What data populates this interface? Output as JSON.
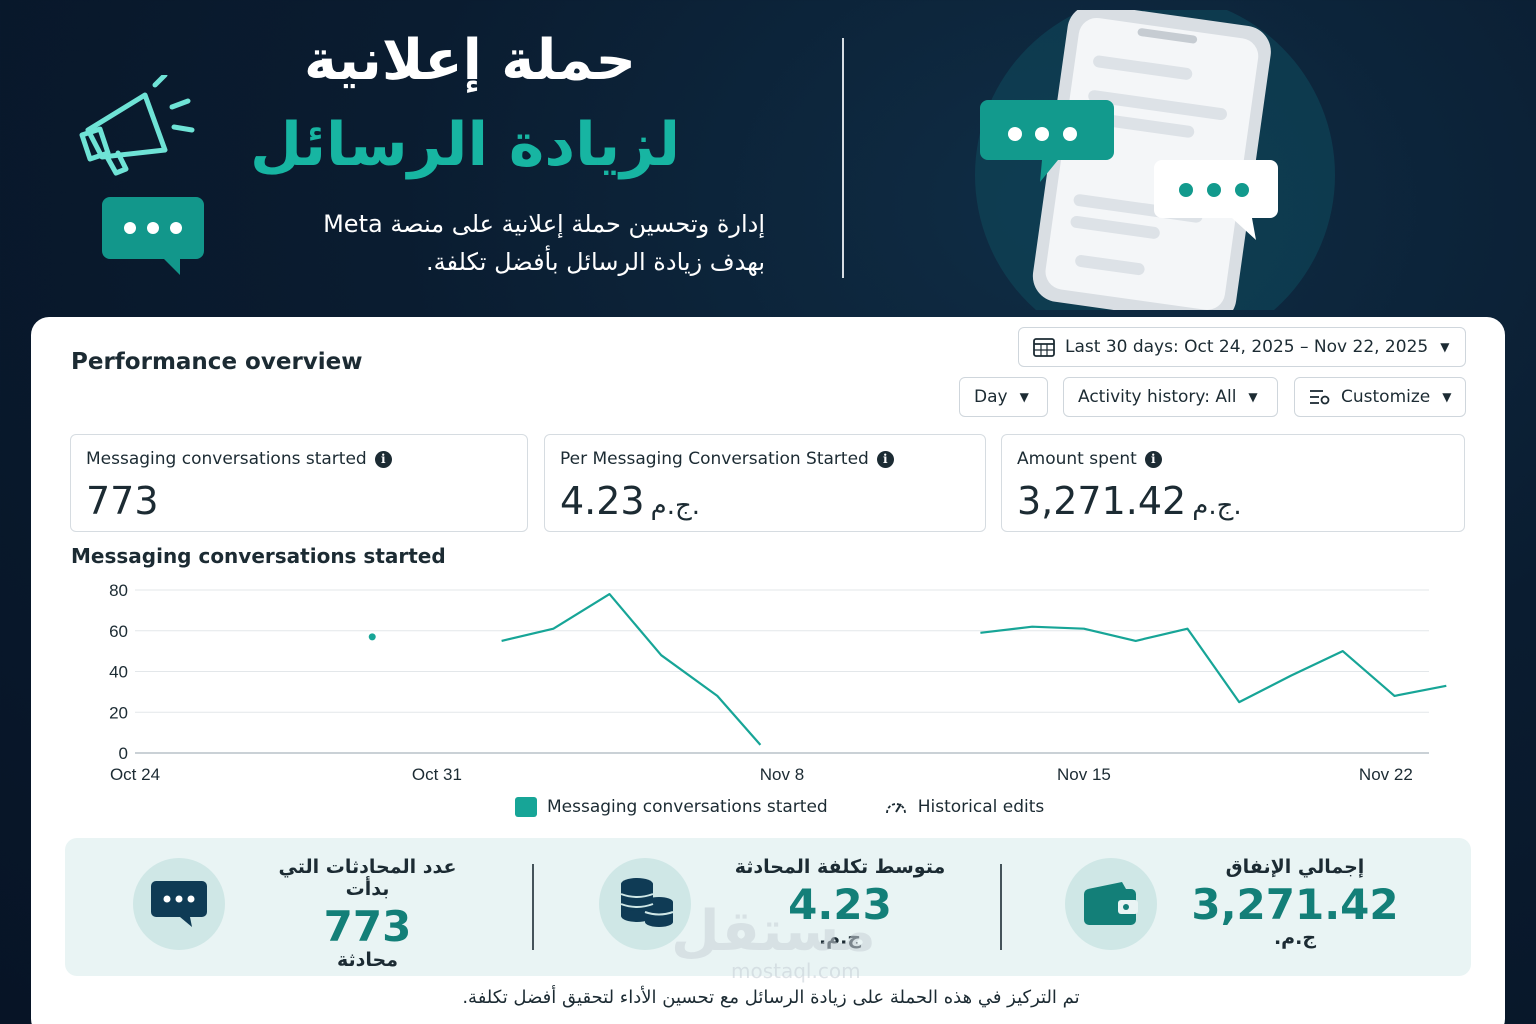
{
  "hero": {
    "title_line1": "حملة إعلانية",
    "title_line2": "لزيادة الرسائل",
    "description_line1": "إدارة وتحسين حملة إعلانية على منصة Meta",
    "description_line2": "بهدف زيادة الرسائل بأفضل تكلفة."
  },
  "overview": {
    "title": "Performance overview",
    "date_range": "Last 30 days: Oct 24, 2025 – Nov 22, 2025",
    "granularity": "Day",
    "activity_history": "Activity history: All",
    "customize": "Customize"
  },
  "metrics": [
    {
      "label": "Messaging conversations started",
      "value": "773",
      "currency": ""
    },
    {
      "label": "Per Messaging Conversation Started",
      "value": "4.23",
      "currency": "ج.م."
    },
    {
      "label": "Amount spent",
      "value": "3,271.42",
      "currency": "ج.م."
    }
  ],
  "chart_title": "Messaging conversations started",
  "chart_data": {
    "type": "line",
    "title": "Messaging conversations started",
    "xlabel": "",
    "ylabel": "",
    "ylim": [
      0,
      80
    ],
    "yticks": [
      "0",
      "20",
      "40",
      "60",
      "80"
    ],
    "x_range_days": [
      0,
      30
    ],
    "x_tick_labels": [
      {
        "label": "Oct 24",
        "day": 0
      },
      {
        "label": "Oct 31",
        "day": 7
      },
      {
        "label": "Nov 8",
        "day": 15
      },
      {
        "label": "Nov 15",
        "day": 22
      },
      {
        "label": "Nov 22",
        "day": 29
      }
    ],
    "series": [
      {
        "name": "Messaging conversations started",
        "color": "#17a597",
        "segments": [
          [
            {
              "day": 5.5,
              "value": 57
            }
          ],
          [
            {
              "day": 8.5,
              "value": 55
            },
            {
              "day": 9.7,
              "value": 61
            },
            {
              "day": 11,
              "value": 78
            },
            {
              "day": 12.2,
              "value": 48
            },
            {
              "day": 13.5,
              "value": 28
            },
            {
              "day": 14.5,
              "value": 4
            }
          ],
          [
            {
              "day": 19.6,
              "value": 59
            },
            {
              "day": 20.8,
              "value": 62
            },
            {
              "day": 22,
              "value": 61
            },
            {
              "day": 23.2,
              "value": 55
            },
            {
              "day": 24.4,
              "value": 61
            },
            {
              "day": 25.6,
              "value": 25
            },
            {
              "day": 26.8,
              "value": 38
            },
            {
              "day": 28,
              "value": 50
            },
            {
              "day": 29.2,
              "value": 28
            },
            {
              "day": 30.4,
              "value": 33
            }
          ]
        ]
      }
    ],
    "grid": true,
    "legend": [
      "Messaging conversations started",
      "Historical edits"
    ],
    "legend_position": "bottom-center"
  },
  "legend": {
    "series_label": "Messaging conversations started",
    "historical_label": "Historical edits"
  },
  "summary": [
    {
      "label": "إجمالي الإنفاق",
      "value": "3,271.42",
      "unit": "ج.م.",
      "icon": "wallet-icon"
    },
    {
      "label": "متوسط تكلفة المحادثة",
      "value": "4.23",
      "unit": "ج.م.",
      "icon": "coins-icon"
    },
    {
      "label": "عدد المحادثات التي بدأت",
      "value": "773",
      "unit": "محادثة",
      "icon": "chat-bubble-icon"
    }
  ],
  "footer_note": "تم التركيز في هذه الحملة على زيادة الرسائل مع تحسين الأداء لتحقيق أفضل تكلفة.",
  "watermark": {
    "text": "مستقل",
    "sub": "mostaql.com"
  },
  "colors": {
    "accent": "#17a597",
    "dark_teal": "#137f78",
    "background": "#0a1c30",
    "text": "#1c2b33"
  }
}
